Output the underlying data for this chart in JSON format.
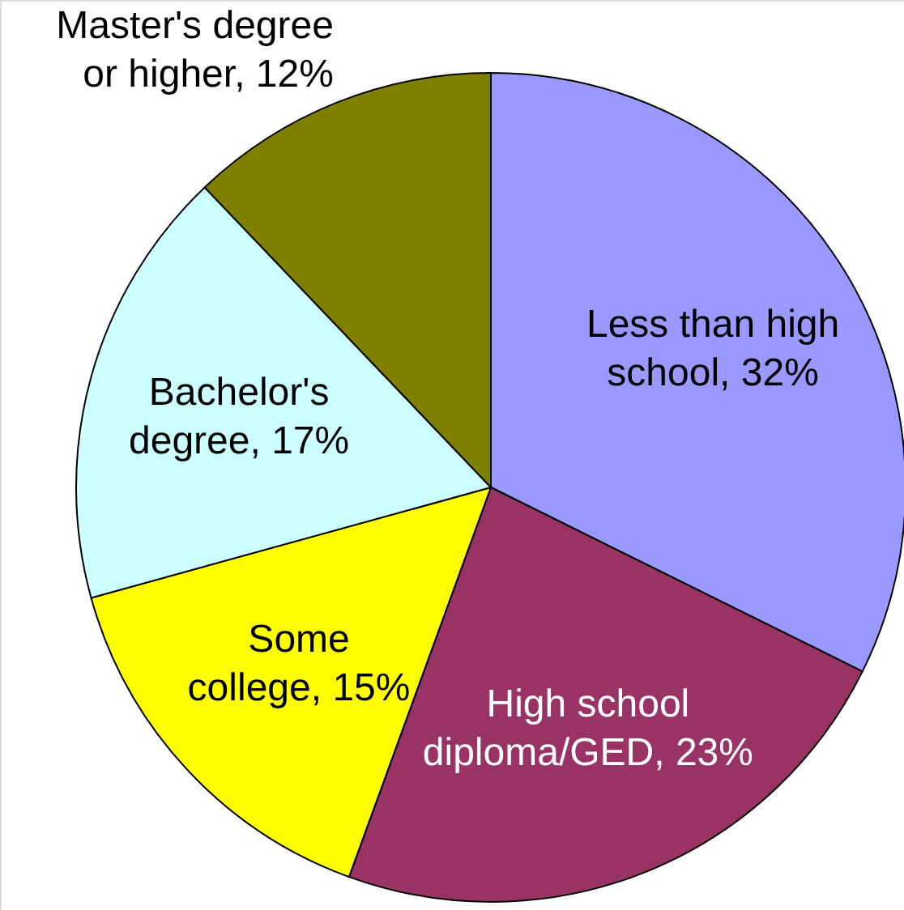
{
  "chart_data": {
    "type": "pie",
    "categories": [
      "Less than high school",
      "High school diploma/GED",
      "Some college",
      "Bachelor's degree",
      "Master's degree or higher"
    ],
    "values": [
      32,
      23,
      15,
      17,
      12
    ],
    "colors": [
      "#9999ff",
      "#993366",
      "#ffff00",
      "#ccffff",
      "#808000"
    ],
    "value_labels": [
      "32%",
      "23%",
      "15%",
      "17%",
      "12%"
    ]
  }
}
